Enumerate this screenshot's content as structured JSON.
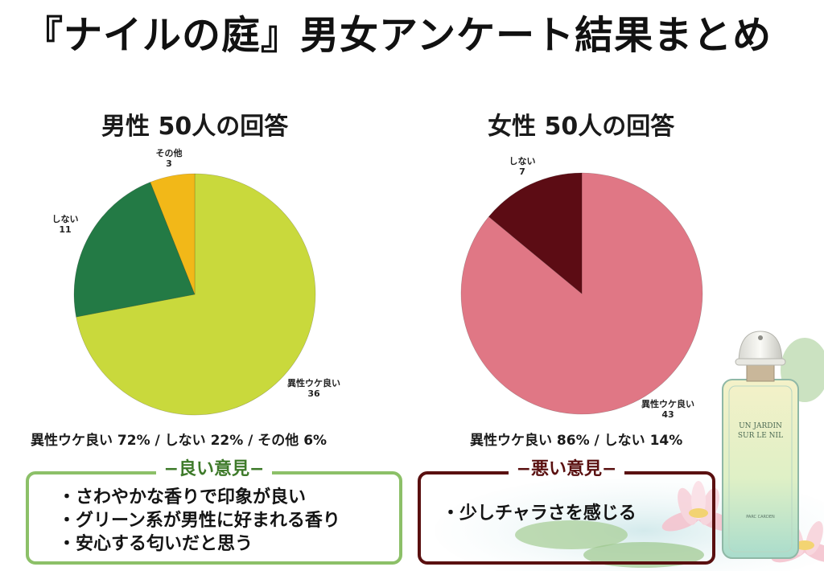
{
  "page": {
    "title": "『ナイルの庭』男女アンケート結果まとめ"
  },
  "charts": {
    "male": {
      "title": "男性 50人の回答",
      "summary": "異性ウケ良い 72% / しない 22% / その他 6%",
      "labels": [
        {
          "name": "異性ウケ良い",
          "value": "36"
        },
        {
          "name": "しない",
          "value": "11"
        },
        {
          "name": "その他",
          "value": "3"
        }
      ]
    },
    "female": {
      "title": "女性 50人の回答",
      "summary": "異性ウケ良い 86% / しない 14%",
      "labels": [
        {
          "name": "異性ウケ良い",
          "value": "43"
        },
        {
          "name": "しない",
          "value": "7"
        }
      ]
    }
  },
  "opinions": {
    "good": {
      "heading": "−良い意見−",
      "items": [
        "・さわやかな香りで印象が良い",
        "・グリーン系が男性に好まれる香り",
        "・安心する匂いだと思う"
      ]
    },
    "bad": {
      "heading": "−悪い意見−",
      "items": [
        "・少しチャラさを感じる"
      ]
    }
  },
  "product": {
    "name_line1": "UN JARDIN",
    "name_line2": "SUR LE NIL",
    "brand": "PARC CARDEN"
  },
  "colors": {
    "male_positive": "#c9d93c",
    "male_no": "#237a45",
    "male_other": "#f2b818",
    "female_positive": "#e07785",
    "female_no": "#5c0c14",
    "good_border": "#8cc068",
    "bad_border": "#5a1010"
  },
  "chart_data": [
    {
      "type": "pie",
      "title": "男性 50人の回答",
      "categories": [
        "異性ウケ良い",
        "しない",
        "その他"
      ],
      "values": [
        36,
        11,
        3
      ],
      "percentages": [
        72,
        22,
        6
      ],
      "colors": [
        "#c9d93c",
        "#237a45",
        "#f2b818"
      ]
    },
    {
      "type": "pie",
      "title": "女性 50人の回答",
      "categories": [
        "異性ウケ良い",
        "しない"
      ],
      "values": [
        43,
        7
      ],
      "percentages": [
        86,
        14
      ],
      "colors": [
        "#e07785",
        "#5c0c14"
      ]
    }
  ]
}
